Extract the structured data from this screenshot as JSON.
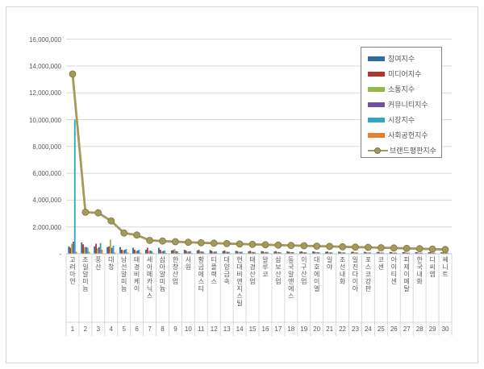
{
  "chart_data": {
    "type": "bar",
    "subtype": "grouped-bars-with-line-overlay",
    "title": "",
    "categories": [
      "고려아연",
      "조일알미늄",
      "풍산",
      "대창",
      "남선알미늄",
      "태경비케이",
      "세아메카닉스",
      "삼아알미늄",
      "한창산업",
      "서원",
      "황금에스티",
      "티플랙스",
      "대양금속",
      "현대비앤지스틸",
      "태경산업",
      "알루코",
      "삼보산업",
      "동국알앤에스",
      "이구산업",
      "대호에이엘",
      "일야",
      "조선내화",
      "일진다이아",
      "포스코강판",
      "코센",
      "아이티센",
      "피제이메탈",
      "한국내화",
      "디씨엠",
      "쎄니트"
    ],
    "category_numbers": [
      "1",
      "2",
      "3",
      "4",
      "5",
      "6",
      "7",
      "8",
      "9",
      "10",
      "11",
      "12",
      "13",
      "14",
      "15",
      "16",
      "17",
      "18",
      "19",
      "20",
      "21",
      "22",
      "23",
      "24",
      "25",
      "26",
      "27",
      "28",
      "29",
      "30"
    ],
    "y_axis": {
      "min": 0,
      "max": 16000000,
      "grid": true,
      "tick_labels": [
        "16,000,000",
        "14,000,000",
        "12,000,000",
        "10,000,000",
        "8,000,000",
        "6,000,000",
        "4,000,000",
        "2,000,000",
        "-"
      ],
      "tick_values": [
        16000000,
        14000000,
        12000000,
        10000000,
        8000000,
        6000000,
        4000000,
        2000000,
        0
      ]
    },
    "legend_position": "top-right-inside",
    "series": [
      {
        "name": "참여지수",
        "type": "bar",
        "color": "#2E6DA4",
        "values": [
          550000,
          850000,
          550000,
          500000,
          500000,
          450000,
          300000,
          450000,
          250000,
          300000,
          250000,
          280000,
          200000,
          220000,
          180000,
          200000,
          170000,
          190000,
          160000,
          180000,
          150000,
          160000,
          140000,
          150000,
          130000,
          140000,
          120000,
          130000,
          110000,
          120000
        ]
      },
      {
        "name": "미디어지수",
        "type": "bar",
        "color": "#B5342F",
        "values": [
          450000,
          700000,
          750000,
          550000,
          300000,
          300000,
          450000,
          300000,
          280000,
          250000,
          300000,
          220000,
          250000,
          200000,
          220000,
          180000,
          200000,
          160000,
          180000,
          150000,
          170000,
          140000,
          160000,
          130000,
          150000,
          120000,
          140000,
          110000,
          130000,
          100000
        ]
      },
      {
        "name": "소통지수",
        "type": "bar",
        "color": "#95B845",
        "values": [
          750000,
          500000,
          400000,
          1050000,
          250000,
          200000,
          200000,
          180000,
          350000,
          160000,
          180000,
          150000,
          160000,
          140000,
          150000,
          130000,
          140000,
          120000,
          130000,
          110000,
          120000,
          100000,
          110000,
          95000,
          100000,
          90000,
          95000,
          85000,
          90000,
          80000
        ]
      },
      {
        "name": "커뮤니티지수",
        "type": "bar",
        "color": "#6E4FA1",
        "values": [
          900000,
          500000,
          500000,
          450000,
          300000,
          250000,
          250000,
          220000,
          200000,
          180000,
          170000,
          160000,
          150000,
          140000,
          135000,
          130000,
          125000,
          120000,
          115000,
          110000,
          105000,
          100000,
          95000,
          90000,
          85000,
          80000,
          75000,
          70000,
          65000,
          60000
        ]
      },
      {
        "name": "시장지수",
        "type": "bar",
        "color": "#31A5C2",
        "values": [
          10000000,
          450000,
          800000,
          600000,
          350000,
          300000,
          200000,
          250000,
          180000,
          200000,
          160000,
          180000,
          140000,
          160000,
          130000,
          140000,
          120000,
          130000,
          110000,
          120000,
          100000,
          110000,
          95000,
          100000,
          90000,
          95000,
          85000,
          90000,
          80000,
          85000
        ]
      },
      {
        "name": "사회공헌지수",
        "type": "bar",
        "color": "#E5802F",
        "values": [
          150000,
          150000,
          300000,
          100000,
          100000,
          80000,
          70000,
          60000,
          55000,
          50000,
          48000,
          46000,
          44000,
          42000,
          40000,
          38000,
          36000,
          34000,
          32000,
          30000,
          28000,
          26000,
          24000,
          22000,
          20000,
          18000,
          16000,
          14000,
          12000,
          10000
        ]
      },
      {
        "name": "브랜드평판지수",
        "type": "line",
        "color": "#A19A5B",
        "marker_stroke": "#7E7640",
        "values": [
          13400000,
          3100000,
          3050000,
          2450000,
          1550000,
          1400000,
          1000000,
          950000,
          900000,
          860000,
          820000,
          790000,
          760000,
          730000,
          700000,
          670000,
          650000,
          620000,
          600000,
          570000,
          550000,
          520000,
          500000,
          480000,
          450000,
          430000,
          400000,
          380000,
          350000,
          320000
        ]
      }
    ],
    "style": {
      "gridline_color": "#d9d9d9",
      "axis_color": "#bfbfbf",
      "separator_color": "#d9d9d9",
      "label_color": "#595959",
      "legend_border": "#848484",
      "background": "#ffffff",
      "frame_border": "#d6d6d6"
    }
  }
}
